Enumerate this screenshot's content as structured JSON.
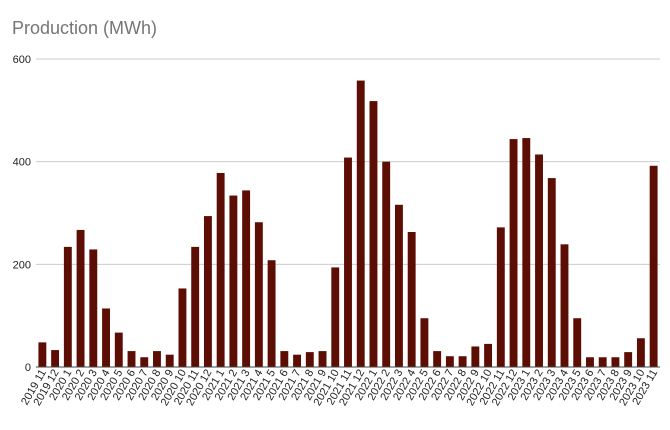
{
  "chart_data": {
    "type": "bar",
    "title": "Production (MWh)",
    "xlabel": "",
    "ylabel": "",
    "ylim": [
      0,
      600
    ],
    "yticks": [
      0,
      200,
      400,
      600
    ],
    "grid": true,
    "bar_color": "#5c0e04",
    "categories": [
      "2019 11",
      "2019 12",
      "2020 1",
      "2020 2",
      "2020 3",
      "2020 4",
      "2020 5",
      "2020 6",
      "2020 7",
      "2020 8",
      "2020 9",
      "2020 10",
      "2020 11",
      "2020 12",
      "2021 1",
      "2021 2",
      "2021 3",
      "2021 4",
      "2021 5",
      "2021 6",
      "2021 7",
      "2021 8",
      "2021 9",
      "2021 10",
      "2021 11",
      "2021 12",
      "2022 1",
      "2022 2",
      "2022 3",
      "2022 4",
      "2022 5",
      "2022 6",
      "2022 7",
      "2022 8",
      "2022 9",
      "2022 10",
      "2022 11",
      "2022 12",
      "2023 1",
      "2023 2",
      "2023 3",
      "2023 4",
      "2023 5",
      "2023 6",
      "2023 7",
      "2023 8",
      "2023 9",
      "2023 10",
      "2023 11"
    ],
    "values": [
      48,
      33,
      234,
      267,
      229,
      114,
      67,
      31,
      19,
      31,
      24,
      153,
      234,
      294,
      378,
      334,
      344,
      282,
      208,
      31,
      24,
      29,
      31,
      194,
      408,
      558,
      518,
      400,
      316,
      263,
      95,
      31,
      21,
      21,
      40,
      45,
      272,
      444,
      446,
      414,
      368,
      239,
      95,
      19,
      19,
      19,
      29,
      56,
      392
    ]
  }
}
